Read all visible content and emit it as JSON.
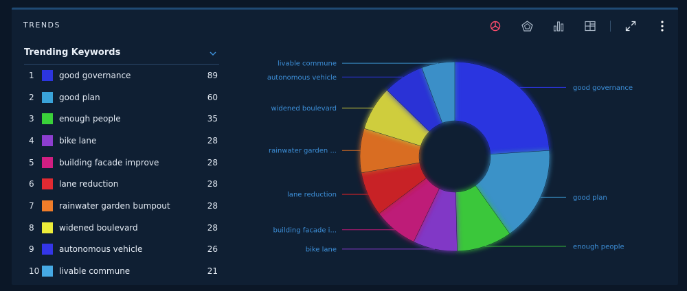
{
  "panel": {
    "title": "TRENDS"
  },
  "toolbar": [
    "pie-chart-icon",
    "radar-chart-icon",
    "bar-chart-icon",
    "table-icon",
    "expand-icon",
    "more-vertical-icon"
  ],
  "keywords": {
    "title": "Trending Keywords",
    "items": [
      {
        "rank": "1",
        "name": "good governance",
        "count": "89",
        "color": "#2c35e0"
      },
      {
        "rank": "2",
        "name": "good plan",
        "count": "60",
        "color": "#3aa3d9"
      },
      {
        "rank": "3",
        "name": "enough people",
        "count": "35",
        "color": "#3ad13a"
      },
      {
        "rank": "4",
        "name": "bike lane",
        "count": "28",
        "color": "#8d3ed0"
      },
      {
        "rank": "5",
        "name": "building facade improve",
        "count": "28",
        "color": "#d11e82"
      },
      {
        "rank": "6",
        "name": "lane reduction",
        "count": "28",
        "color": "#e22a32"
      },
      {
        "rank": "7",
        "name": "rainwater garden bumpout",
        "count": "28",
        "color": "#f07d2a"
      },
      {
        "rank": "8",
        "name": "widened boulevard",
        "count": "28",
        "color": "#ecec3a"
      },
      {
        "rank": "9",
        "name": "autonomous vehicle",
        "count": "26",
        "color": "#3436e8"
      },
      {
        "rank": "10",
        "name": "livable commune",
        "count": "21",
        "color": "#46a9e4"
      }
    ]
  },
  "chart_data": {
    "type": "pie",
    "style": "donut",
    "categories": [
      "good governance",
      "good plan",
      "enough people",
      "bike lane",
      "building facade improve",
      "lane reduction",
      "rainwater garden bumpout",
      "widened boulevard",
      "autonomous vehicle",
      "livable commune"
    ],
    "values": [
      89,
      60,
      35,
      28,
      28,
      28,
      28,
      28,
      26,
      21
    ],
    "slice_labels": [
      "good governance",
      "good plan",
      "enough people",
      "bike lane",
      "building facade i...",
      "lane reduction",
      "rainwater garden ...",
      "widened boulevard",
      "autonomous vehicle",
      "livable commune"
    ],
    "colors": [
      "#2c35e0",
      "#3a92c8",
      "#3ac73a",
      "#8137c6",
      "#be1a78",
      "#c82228",
      "#d96d22",
      "#cfcd3c",
      "#2b31d6",
      "#3a8fc8"
    ]
  }
}
